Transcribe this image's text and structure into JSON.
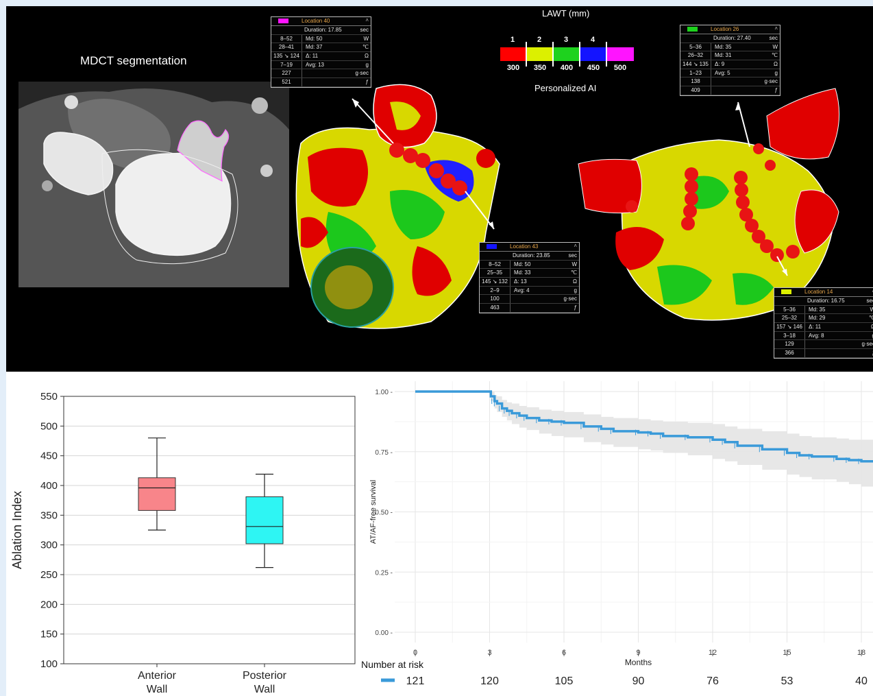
{
  "top": {
    "mdct_label": "MDCT segmentation",
    "lawt_title": "LAWT (mm)",
    "lawt_top_ticks": [
      "1",
      "2",
      "3",
      "4"
    ],
    "lawt_bottom_ticks": [
      "300",
      "350",
      "400",
      "450",
      "500"
    ],
    "lawt_colors": [
      "#ff0000",
      "#dcf000",
      "#1ed21e",
      "#1414ff",
      "#ff14ff"
    ],
    "ai_label": "Personalized AI",
    "boxes": [
      {
        "title": "Location 40",
        "swatch": "#ff14ff",
        "duration": "Duration: 17.85",
        "duration_unit": "sec",
        "rows": [
          {
            "c1": "8–52",
            "c2": "Md: 50",
            "u": "W"
          },
          {
            "c1": "28–41",
            "c2": "Md: 37",
            "u": "℃"
          },
          {
            "c1": "135 ↘ 124",
            "c2": "Δ: 11",
            "u": "Ω"
          },
          {
            "c1": "7–19",
            "c2": "Avg: 13",
            "u": "g"
          },
          {
            "c1": "227",
            "c2": "",
            "u": "g·sec"
          },
          {
            "c1": "521",
            "c2": "",
            "u": "ƒ"
          }
        ]
      },
      {
        "title": "Location 26",
        "swatch": "#1ed21e",
        "duration": "Duration: 27.40",
        "duration_unit": "sec",
        "rows": [
          {
            "c1": "5–36",
            "c2": "Md: 35",
            "u": "W"
          },
          {
            "c1": "26–32",
            "c2": "Md: 31",
            "u": "℃"
          },
          {
            "c1": "144 ↘ 135",
            "c2": "Δ: 9",
            "u": "Ω"
          },
          {
            "c1": "1–23",
            "c2": "Avg: 5",
            "u": "g"
          },
          {
            "c1": "138",
            "c2": "",
            "u": "g·sec"
          },
          {
            "c1": "409",
            "c2": "",
            "u": "ƒ"
          }
        ]
      },
      {
        "title": "Location 43",
        "swatch": "#1414ff",
        "duration": "Duration: 23.85",
        "duration_unit": "sec",
        "rows": [
          {
            "c1": "8–52",
            "c2": "Md: 50",
            "u": "W"
          },
          {
            "c1": "25–35",
            "c2": "Md: 33",
            "u": "℃"
          },
          {
            "c1": "145 ↘ 132",
            "c2": "Δ: 13",
            "u": "Ω"
          },
          {
            "c1": "2–9",
            "c2": "Avg: 4",
            "u": "g"
          },
          {
            "c1": "100",
            "c2": "",
            "u": "g·sec"
          },
          {
            "c1": "463",
            "c2": "",
            "u": "ƒ"
          }
        ]
      },
      {
        "title": "Location 14",
        "swatch": "#dcf000",
        "duration": "Duration: 16.75",
        "duration_unit": "sec",
        "rows": [
          {
            "c1": "5–36",
            "c2": "Md: 35",
            "u": "W"
          },
          {
            "c1": "25–32",
            "c2": "Md: 29",
            "u": "℃"
          },
          {
            "c1": "157 ↘ 146",
            "c2": "Δ: 11",
            "u": "Ω"
          },
          {
            "c1": "3–18",
            "c2": "Avg: 8",
            "u": "g"
          },
          {
            "c1": "129",
            "c2": "",
            "u": "g·sec"
          },
          {
            "c1": "366",
            "c2": "",
            "u": "ƒ"
          }
        ]
      }
    ]
  },
  "chart_data": [
    {
      "type": "box",
      "ylabel": "Ablation Index",
      "ylim": [
        100,
        550
      ],
      "yticks": [
        100,
        150,
        200,
        250,
        300,
        350,
        400,
        450,
        500,
        550
      ],
      "grid": true,
      "categories": [
        "Anterior\nWall",
        "Posterior\nWall"
      ],
      "colors": [
        "#f8858a",
        "#2ef5f3"
      ],
      "boxes": [
        {
          "min": 325,
          "q1": 358,
          "median": 396,
          "q3": 413,
          "max": 480
        },
        {
          "min": 262,
          "q1": 302,
          "median": 331,
          "q3": 381,
          "max": 419
        }
      ]
    },
    {
      "type": "line",
      "ylabel": "AT/AF-free survival",
      "xlabel": "Months",
      "xticks": [
        0,
        3,
        6,
        9,
        12,
        15,
        18
      ],
      "yticks": [
        "0.00",
        "0.25",
        "0.50",
        "0.75",
        "1.00"
      ],
      "ylim": [
        0,
        1
      ],
      "color": "#3a9ad9",
      "ci_color": "#e6e6e6",
      "series": [
        {
          "x": [
            0,
            2.9,
            3.05,
            3.2,
            3.3,
            3.5,
            3.7,
            3.9,
            4.2,
            4.5,
            5.0,
            5.5,
            6.0,
            6.8,
            7.5,
            8.0,
            9.0,
            9.5,
            10.0,
            11.0,
            12.0,
            12.5,
            13.0,
            14.0,
            15.0,
            15.5,
            16.0,
            17.0,
            17.5,
            18.0,
            18.6
          ],
          "y": [
            1.0,
            1.0,
            0.98,
            0.96,
            0.95,
            0.93,
            0.92,
            0.91,
            0.9,
            0.89,
            0.88,
            0.875,
            0.87,
            0.855,
            0.845,
            0.835,
            0.83,
            0.825,
            0.815,
            0.81,
            0.8,
            0.79,
            0.775,
            0.76,
            0.745,
            0.735,
            0.73,
            0.72,
            0.715,
            0.71,
            0.69
          ],
          "lower": [
            1.0,
            1.0,
            0.96,
            0.93,
            0.915,
            0.895,
            0.88,
            0.865,
            0.85,
            0.84,
            0.825,
            0.815,
            0.81,
            0.79,
            0.78,
            0.77,
            0.76,
            0.755,
            0.745,
            0.735,
            0.72,
            0.71,
            0.695,
            0.675,
            0.655,
            0.645,
            0.635,
            0.625,
            0.615,
            0.605,
            0.585
          ],
          "upper": [
            1.0,
            1.0,
            1.0,
            0.985,
            0.98,
            0.965,
            0.955,
            0.95,
            0.94,
            0.935,
            0.925,
            0.92,
            0.915,
            0.905,
            0.895,
            0.89,
            0.885,
            0.88,
            0.875,
            0.87,
            0.865,
            0.855,
            0.845,
            0.835,
            0.825,
            0.815,
            0.81,
            0.805,
            0.8,
            0.8,
            0.78
          ]
        }
      ],
      "risk_table": {
        "title": "Number at risk",
        "x": [
          0,
          3,
          6,
          9,
          12,
          15,
          18
        ],
        "values": [
          "121",
          "120",
          "105",
          "90",
          "76",
          "53",
          "40"
        ]
      }
    }
  ]
}
